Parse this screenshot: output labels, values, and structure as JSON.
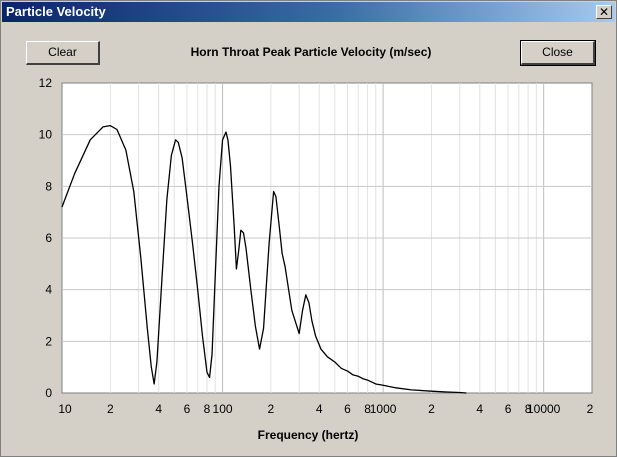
{
  "window": {
    "title": "Particle Velocity",
    "close_glyph": "✕"
  },
  "buttons": {
    "clear": "Clear",
    "close": "Close"
  },
  "chart_data": {
    "type": "line",
    "title": "Horn Throat Peak Particle Velocity (m/sec)",
    "xlabel": "Frequency (hertz)",
    "ylabel": "",
    "xscale": "log",
    "xlim": [
      10,
      20000
    ],
    "ylim": [
      0,
      12
    ],
    "grid": true,
    "x_ticks": [
      {
        "v": 10,
        "label": "10"
      },
      {
        "v": 20,
        "label": "2"
      },
      {
        "v": 40,
        "label": "4"
      },
      {
        "v": 60,
        "label": "6"
      },
      {
        "v": 80,
        "label": "8"
      },
      {
        "v": 100,
        "label": "100"
      },
      {
        "v": 200,
        "label": "2"
      },
      {
        "v": 400,
        "label": "4"
      },
      {
        "v": 600,
        "label": "6"
      },
      {
        "v": 800,
        "label": "8"
      },
      {
        "v": 1000,
        "label": "1000"
      },
      {
        "v": 2000,
        "label": "2"
      },
      {
        "v": 4000,
        "label": "4"
      },
      {
        "v": 6000,
        "label": "6"
      },
      {
        "v": 8000,
        "label": "8"
      },
      {
        "v": 10000,
        "label": "10000"
      },
      {
        "v": 20000,
        "label": "2"
      }
    ],
    "y_ticks": [
      0,
      2,
      4,
      6,
      8,
      10,
      12
    ],
    "series": [
      {
        "color": "#000000",
        "x": [
          10,
          12,
          15,
          18,
          20,
          22,
          25,
          28,
          31,
          34,
          36,
          37.5,
          39,
          42,
          45,
          48,
          51,
          53,
          56,
          60,
          65,
          70,
          75,
          80,
          83,
          86,
          90,
          95,
          100,
          105,
          108,
          112,
          118,
          122,
          126,
          130,
          135,
          140,
          150,
          160,
          170,
          180,
          195,
          208,
          215,
          225,
          235,
          245,
          270,
          300,
          315,
          330,
          345,
          360,
          380,
          410,
          450,
          500,
          550,
          600,
          650,
          700,
          750,
          800,
          900,
          1000,
          1200,
          1500,
          2000,
          2500,
          3000,
          3300
        ],
        "y": [
          7.2,
          8.5,
          9.8,
          10.3,
          10.35,
          10.2,
          9.4,
          7.8,
          5.2,
          2.5,
          1.0,
          0.35,
          1.2,
          4.5,
          7.5,
          9.2,
          9.8,
          9.7,
          9.1,
          7.6,
          5.8,
          4.0,
          2.2,
          0.8,
          0.6,
          1.5,
          4.5,
          8.0,
          9.8,
          10.1,
          9.8,
          8.8,
          6.5,
          4.8,
          5.5,
          6.3,
          6.2,
          5.6,
          4.0,
          2.6,
          1.7,
          2.5,
          5.8,
          7.8,
          7.6,
          6.5,
          5.4,
          4.9,
          3.2,
          2.3,
          3.2,
          3.8,
          3.5,
          2.8,
          2.2,
          1.7,
          1.4,
          1.2,
          0.95,
          0.85,
          0.7,
          0.65,
          0.55,
          0.5,
          0.35,
          0.3,
          0.2,
          0.12,
          0.07,
          0.04,
          0.02,
          0.0
        ]
      }
    ]
  }
}
